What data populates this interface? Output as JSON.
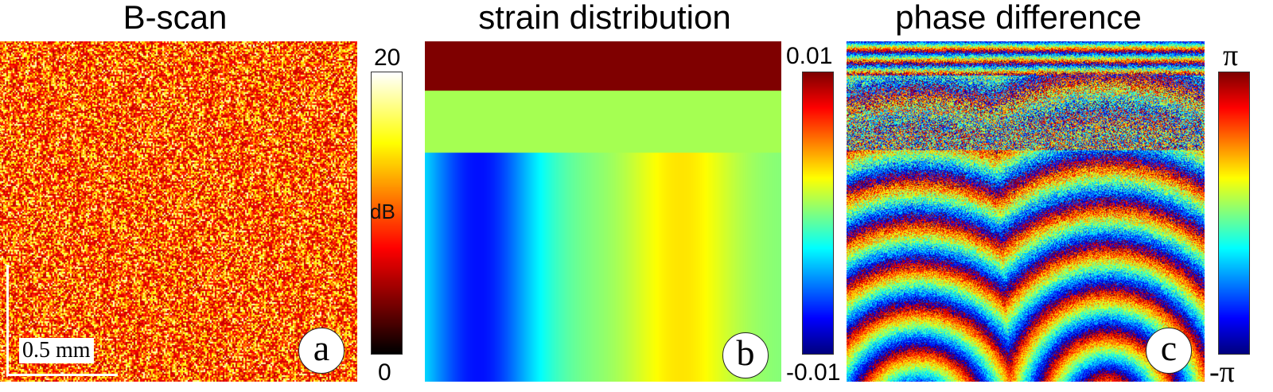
{
  "panels": {
    "a": {
      "title": "B-scan",
      "badge": "a",
      "scale_bar_label": "0.5 mm",
      "colorbar": {
        "max_label": "20",
        "min_label": "0",
        "unit_label": "dB",
        "range": [
          0,
          20
        ],
        "colormap": "hot"
      }
    },
    "b": {
      "title": "strain distribution",
      "badge": "b",
      "colorbar": {
        "max_label": "0.01",
        "min_label": "-0.01",
        "range": [
          -0.01,
          0.01
        ],
        "colormap": "jet"
      },
      "strain_layers": [
        {
          "layer": "top",
          "value": 0.01,
          "color": "#7f0000"
        },
        {
          "layer": "middle",
          "value": 0.0,
          "color": "#a5ff52"
        },
        {
          "layer": "bottom",
          "value_profile": "laterally varying: blue (~-0.008) left of center, yellow (~0.004) right of center"
        }
      ]
    },
    "c": {
      "title": "phase difference",
      "badge": "c",
      "colorbar": {
        "max_label": "π",
        "min_label": "-π",
        "range": [
          "-π",
          "π"
        ],
        "colormap": "jet"
      }
    }
  },
  "colors": {
    "hot_map": [
      "#000000",
      "#7f0000",
      "#ff0000",
      "#ff8000",
      "#ffff00",
      "#ffffff"
    ],
    "jet_map": [
      "#00008f",
      "#0000ff",
      "#00ffff",
      "#ffff00",
      "#ff0000",
      "#800000"
    ],
    "b_top": "#7f0000",
    "b_middle": "#a5ff52"
  }
}
